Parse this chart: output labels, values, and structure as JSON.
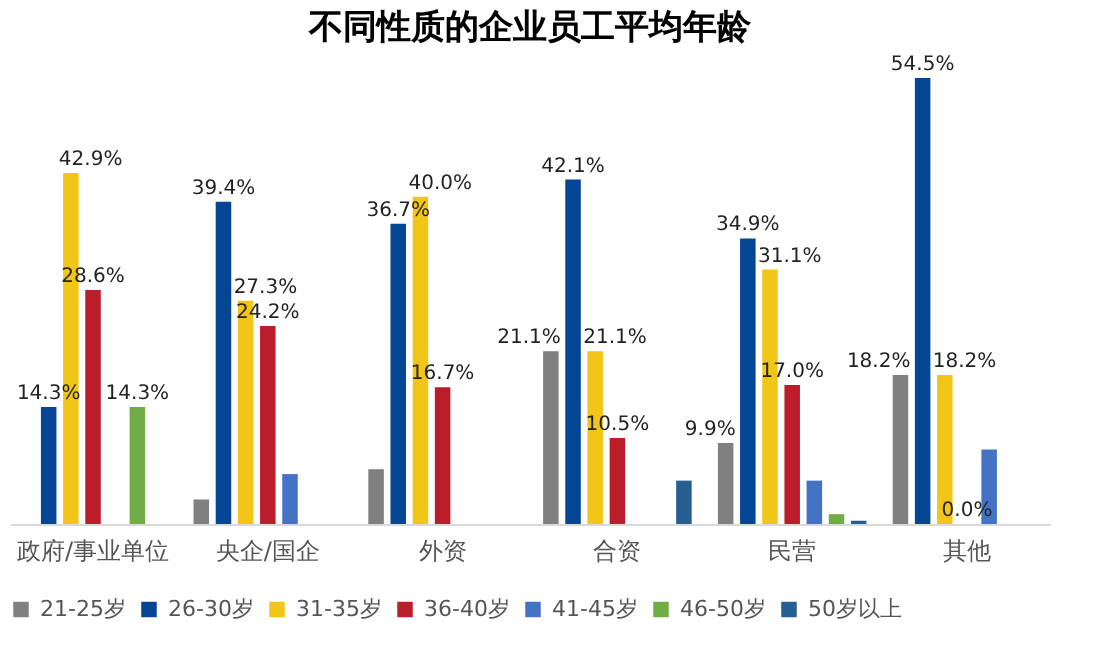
{
  "chart_data": {
    "type": "bar",
    "title": "不同性质的企业员工平均年龄",
    "categories": [
      "政府/事业单位",
      "央企/国企",
      "外资",
      "合资",
      "民营",
      "其他"
    ],
    "series": [
      {
        "name": "21-25岁",
        "color": "#808080",
        "values": [
          null,
          3.0,
          6.7,
          21.1,
          9.9,
          18.2
        ],
        "value_labels": [
          null,
          null,
          null,
          "21.1%",
          "9.9%",
          "18.2%"
        ]
      },
      {
        "name": "26-30岁",
        "color": "#044594",
        "values": [
          14.3,
          39.4,
          36.7,
          42.1,
          34.9,
          54.5
        ],
        "value_labels": [
          "14.3%",
          "39.4%",
          "36.7%",
          "42.1%",
          "34.9%",
          "54.5%"
        ]
      },
      {
        "name": "31-35岁",
        "color": "#f2c618",
        "values": [
          42.9,
          27.3,
          40.0,
          21.1,
          31.1,
          18.2
        ],
        "value_labels": [
          "42.9%",
          "27.3%",
          "40.0%",
          "21.1%",
          "31.1%",
          "18.2%"
        ]
      },
      {
        "name": "36-40岁",
        "color": "#bb1e2a",
        "values": [
          28.6,
          24.2,
          16.7,
          10.5,
          17.0,
          0.0
        ],
        "value_labels": [
          "28.6%",
          "24.2%",
          "16.7%",
          "10.5%",
          "17.0%",
          "0.0%"
        ]
      },
      {
        "name": "41-45岁",
        "color": "#4472c4",
        "values": [
          null,
          6.1,
          null,
          null,
          5.3,
          9.1
        ]
      },
      {
        "name": "46-50岁",
        "color": "#70ad47",
        "values": [
          14.3,
          null,
          null,
          null,
          1.2,
          null
        ],
        "value_labels": [
          "14.3%",
          null,
          null,
          null,
          null,
          null
        ]
      },
      {
        "name": "50岁以上",
        "color": "#255e91",
        "values": [
          null,
          null,
          null,
          5.3,
          0.4,
          null
        ]
      }
    ],
    "tick_labels": "x",
    "grid": false,
    "legend": "bottom"
  }
}
